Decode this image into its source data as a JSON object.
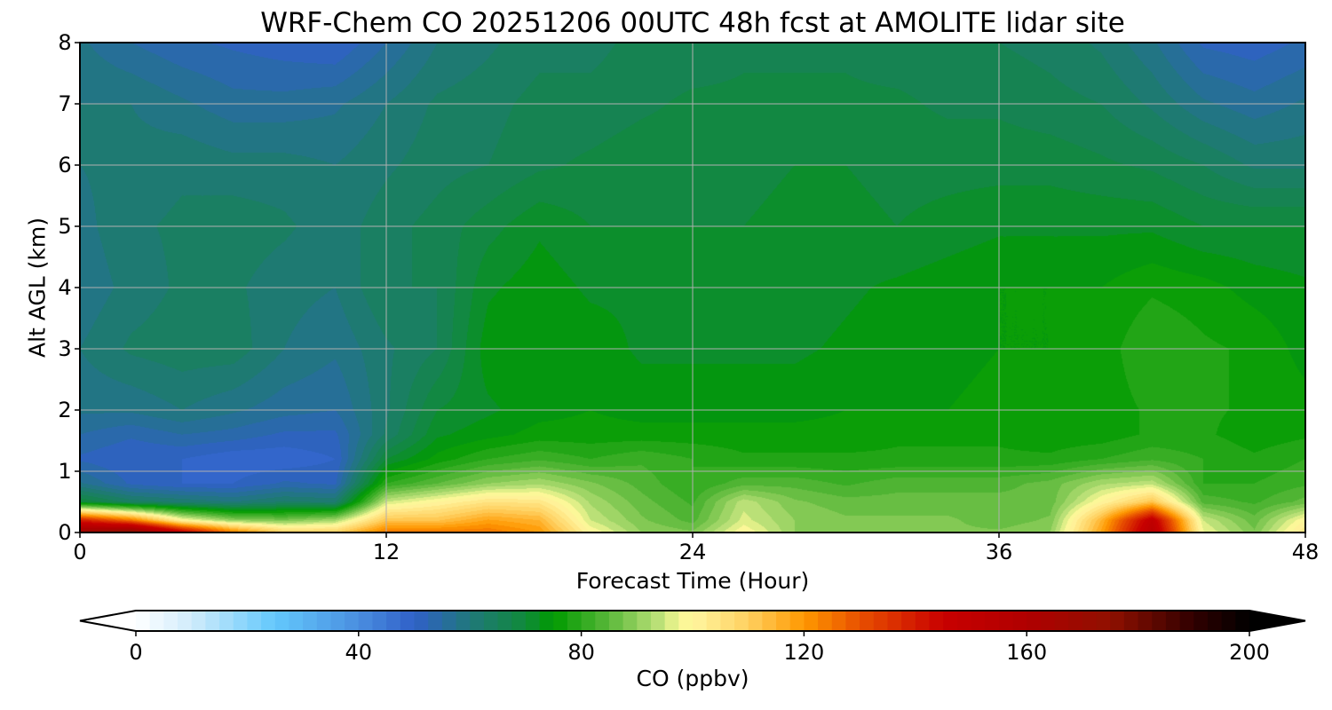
{
  "chart_data": {
    "type": "heatmap",
    "title": "WRF-Chem CO  20251206 00UTC 48h fcst at AMOLITE lidar site",
    "xlabel": "Forecast Time (Hour)",
    "ylabel": "Alt AGL (km)",
    "xlim": [
      0,
      48
    ],
    "ylim": [
      0,
      8
    ],
    "xticks": [
      "0",
      "12",
      "24",
      "36",
      "48"
    ],
    "yticks": [
      "0",
      "1",
      "2",
      "3",
      "4",
      "5",
      "6",
      "7",
      "8"
    ],
    "grid": true,
    "x": [
      0,
      2,
      4,
      6,
      8,
      10,
      12,
      14,
      16,
      18,
      20,
      22,
      24,
      26,
      28,
      30,
      32,
      34,
      36,
      38,
      40,
      42,
      44,
      46,
      48
    ],
    "y": [
      0,
      0.2,
      0.5,
      0.8,
      1.2,
      1.6,
      2,
      3,
      4,
      5,
      6,
      7,
      8
    ],
    "z": [
      [
        170,
        180,
        150,
        125,
        110,
        110,
        125,
        125,
        125,
        120,
        100,
        90,
        88,
        100,
        90,
        88,
        88,
        88,
        88,
        90,
        118,
        155,
        98,
        88,
        105
      ],
      [
        140,
        125,
        100,
        90,
        88,
        92,
        112,
        112,
        118,
        115,
        95,
        88,
        84,
        96,
        90,
        88,
        88,
        88,
        86,
        88,
        115,
        150,
        95,
        86,
        100
      ],
      [
        70,
        64,
        62,
        60,
        63,
        62,
        95,
        100,
        105,
        104,
        92,
        86,
        82,
        94,
        88,
        86,
        86,
        86,
        86,
        86,
        100,
        112,
        84,
        82,
        86
      ],
      [
        58,
        52,
        50,
        50,
        53,
        52,
        80,
        85,
        90,
        92,
        88,
        84,
        80,
        84,
        84,
        82,
        84,
        84,
        84,
        86,
        92,
        94,
        80,
        80,
        82
      ],
      [
        52,
        50,
        50,
        48,
        48,
        50,
        70,
        76,
        80,
        82,
        80,
        82,
        80,
        78,
        78,
        78,
        78,
        78,
        78,
        78,
        80,
        82,
        80,
        78,
        80
      ],
      [
        55,
        53,
        55,
        54,
        52,
        52,
        63,
        72,
        74,
        76,
        76,
        76,
        76,
        76,
        76,
        76,
        77,
        77,
        77,
        76,
        76,
        78,
        78,
        76,
        77
      ],
      [
        58,
        58,
        60,
        58,
        56,
        55,
        62,
        70,
        72,
        74,
        75,
        74,
        74,
        74,
        74,
        75,
        75,
        75,
        76,
        76,
        76,
        78,
        78,
        77,
        76
      ],
      [
        60,
        63,
        64,
        64,
        60,
        58,
        62,
        65,
        74,
        75,
        74,
        72,
        72,
        72,
        72,
        73,
        74,
        74,
        75,
        75,
        76,
        80,
        78,
        77,
        74
      ],
      [
        58,
        61,
        63,
        63,
        61,
        60,
        65,
        65,
        72,
        74,
        72,
        72,
        71,
        71,
        71,
        72,
        73,
        74,
        75,
        75,
        75,
        77,
        76,
        74,
        73
      ],
      [
        59,
        62,
        63,
        64,
        63,
        61,
        64,
        66,
        69,
        72,
        70,
        70,
        70,
        70,
        71,
        71,
        70,
        71,
        72,
        72,
        72,
        72,
        70,
        70,
        70
      ],
      [
        60,
        61,
        62,
        61,
        61,
        60,
        62,
        64,
        65,
        67,
        68,
        69,
        69,
        69,
        70,
        70,
        69,
        69,
        69,
        69,
        68,
        67,
        65,
        62,
        62
      ],
      [
        60,
        60,
        58,
        56,
        56,
        57,
        60,
        63,
        64,
        66,
        66,
        67,
        68,
        68,
        68,
        68,
        68,
        67,
        67,
        66,
        65,
        62,
        58,
        56,
        58
      ],
      [
        58,
        55,
        53,
        52,
        51,
        50,
        55,
        60,
        62,
        64,
        64,
        66,
        66,
        67,
        67,
        67,
        66,
        66,
        65,
        64,
        62,
        58,
        52,
        51,
        53
      ]
    ],
    "colorbar": {
      "label": "CO  (ppbv)",
      "range": [
        0,
        200
      ],
      "step": 2.5,
      "extend": "both",
      "ticks": [
        "0",
        "40",
        "80",
        "120",
        "160",
        "200"
      ],
      "anchors": [
        [
          0,
          "#ffffff"
        ],
        [
          10,
          "#d0ecfb"
        ],
        [
          25,
          "#63c8fc"
        ],
        [
          40,
          "#4a8ee0"
        ],
        [
          50,
          "#3060c8"
        ],
        [
          60,
          "#20787a"
        ],
        [
          70,
          "#108a3a"
        ],
        [
          75,
          "#009a00"
        ],
        [
          85,
          "#5ab83a"
        ],
        [
          95,
          "#c8e680"
        ],
        [
          97.5,
          "#f8f890"
        ],
        [
          100,
          "#fff6a0"
        ],
        [
          110,
          "#ffd060"
        ],
        [
          120,
          "#ff9800"
        ],
        [
          130,
          "#e85000"
        ],
        [
          145,
          "#c80000"
        ],
        [
          160,
          "#b00000"
        ],
        [
          175,
          "#901000"
        ],
        [
          190,
          "#300000"
        ],
        [
          200,
          "#000000"
        ]
      ]
    }
  }
}
